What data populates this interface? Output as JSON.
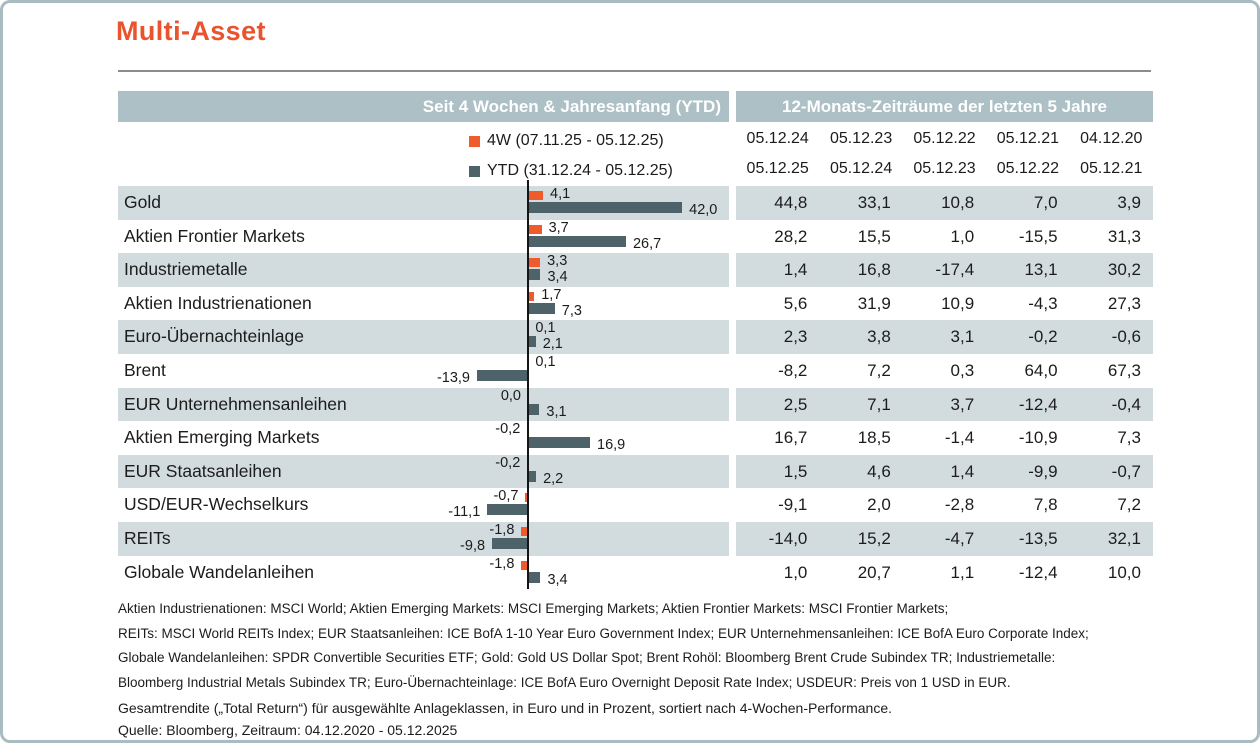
{
  "title": "Multi-Asset",
  "colors": {
    "accent_orange": "#e9532e",
    "bar_orange": "#f05b2d",
    "bar_gray": "#4e626a",
    "header_bg": "#adc0c5",
    "stripe_bg": "#d2dcdf",
    "frame_border": "#a9bcc1",
    "rule_gray": "#8c8c8c",
    "text_dark": "#1c1c1c"
  },
  "headers": {
    "left": "Seit 4 Wochen & Jahresanfang (YTD)",
    "right": "12-Monats-Zeiträume der letzten 5 Jahre"
  },
  "legend": {
    "items": [
      {
        "icon": "4w-swatch-icon",
        "label": "4W (07.11.25 - 05.12.25)"
      },
      {
        "icon": "ytd-swatch-icon",
        "label": "YTD (31.12.24 - 05.12.25)"
      }
    ]
  },
  "chart_data": {
    "type": "bar",
    "orientation": "horizontal",
    "unit": "percent",
    "decimal_style": "german-comma",
    "series_names": [
      "4W (07.11.25 - 05.12.25)",
      "YTD (31.12.24 - 05.12.25)"
    ],
    "xlim": [
      -20,
      55
    ],
    "column_headers_top": [
      "05.12.24",
      "05.12.23",
      "05.12.22",
      "05.12.21",
      "04.12.20"
    ],
    "column_headers_bottom": [
      "05.12.25",
      "05.12.24",
      "05.12.23",
      "05.12.22",
      "05.12.21"
    ],
    "rows": [
      {
        "label": "Gold",
        "w4": 4.1,
        "ytd": 42.0,
        "yearly": [
          44.8,
          33.1,
          10.8,
          7.0,
          3.9
        ]
      },
      {
        "label": "Aktien Frontier Markets",
        "w4": 3.7,
        "ytd": 26.7,
        "yearly": [
          28.2,
          15.5,
          1.0,
          -15.5,
          31.3
        ]
      },
      {
        "label": "Industriemetalle",
        "w4": 3.3,
        "ytd": 3.4,
        "yearly": [
          1.4,
          16.8,
          -17.4,
          13.1,
          30.2
        ]
      },
      {
        "label": "Aktien Industrienationen",
        "w4": 1.7,
        "ytd": 7.3,
        "yearly": [
          5.6,
          31.9,
          10.9,
          -4.3,
          27.3
        ]
      },
      {
        "label": "Euro-Übernachteinlage",
        "w4": 0.1,
        "ytd": 2.1,
        "yearly": [
          2.3,
          3.8,
          3.1,
          -0.2,
          -0.6
        ]
      },
      {
        "label": "Brent",
        "w4": 0.1,
        "ytd": -13.9,
        "yearly": [
          -8.2,
          7.2,
          0.3,
          64.0,
          67.3
        ]
      },
      {
        "label": "EUR Unternehmensanleihen",
        "w4": 0.0,
        "ytd": 3.1,
        "yearly": [
          2.5,
          7.1,
          3.7,
          -12.4,
          -0.4
        ]
      },
      {
        "label": "Aktien Emerging Markets",
        "w4": -0.2,
        "ytd": 16.9,
        "yearly": [
          16.7,
          18.5,
          -1.4,
          -10.9,
          7.3
        ]
      },
      {
        "label": "EUR Staatsanleihen",
        "w4": -0.2,
        "ytd": 2.2,
        "yearly": [
          1.5,
          4.6,
          1.4,
          -9.9,
          -0.7
        ]
      },
      {
        "label": "USD/EUR-Wechselkurs",
        "w4": -0.7,
        "ytd": -11.1,
        "yearly": [
          -9.1,
          2.0,
          -2.8,
          7.8,
          7.2
        ]
      },
      {
        "label": "REITs",
        "w4": -1.8,
        "ytd": -9.8,
        "yearly": [
          -14.0,
          15.2,
          -4.7,
          -13.5,
          32.1
        ]
      },
      {
        "label": "Globale Wandelanleihen",
        "w4": -1.8,
        "ytd": 3.4,
        "yearly": [
          1.0,
          20.7,
          1.1,
          -12.4,
          10.0
        ]
      }
    ]
  },
  "footnotes": {
    "lines": [
      "Aktien Industrienationen: MSCI World; Aktien Emerging Markets: MSCI Emerging Markets; Aktien Frontier Markets: MSCI Frontier Markets;",
      "REITs: MSCI World REITs Index; EUR Staatsanleihen: ICE BofA 1-10 Year Euro Government Index; EUR Unternehmensanleihen: ICE BofA Euro Corporate Index;",
      "Globale Wandelanleihen: SPDR Convertible Securities ETF; Gold: Gold US Dollar Spot; Brent Rohöl: Bloomberg Brent Crude Subindex TR; Industriemetalle:",
      "Bloomberg Industrial Metals Subindex TR; Euro-Übernachteinlage: ICE BofA Euro Overnight Deposit Rate Index; USDEUR: Preis von 1 USD in EUR."
    ]
  },
  "caption": {
    "lines": [
      "Gesamtrendite („Total Return“) für ausgewählte Anlageklassen, in Euro und in Prozent, sortiert nach 4-Wochen-Performance.",
      "Quelle: Bloomberg, Zeitraum: 04.12.2020 - 05.12.2025"
    ]
  }
}
